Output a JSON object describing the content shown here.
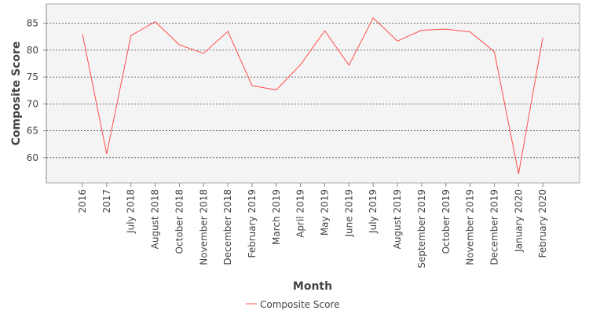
{
  "chart_data": {
    "type": "line",
    "xlabel": "Month",
    "ylabel": "Composite Score",
    "categories": [
      "2016",
      "2017",
      "July 2018",
      "August 2018",
      "October 2018",
      "November 2018",
      "December 2018",
      "February 2019",
      "March 2019",
      "April 2019",
      "May 2019",
      "June 2019",
      "July 2019",
      "August 2019",
      "September 2019",
      "October 2019",
      "November 2019",
      "December 2019",
      "January 2020",
      "February 2020"
    ],
    "series": [
      {
        "name": "Composite Score",
        "color": "#ff4d4d",
        "values": [
          83.0,
          60.7,
          82.7,
          85.3,
          81.0,
          79.4,
          83.5,
          73.4,
          72.6,
          77.3,
          83.6,
          77.2,
          86.0,
          81.7,
          83.7,
          83.9,
          83.4,
          79.7,
          57.0,
          82.3
        ]
      }
    ],
    "yticks": [
      60,
      65,
      70,
      75,
      80,
      85
    ],
    "ylim": [
      55.3,
      88.6
    ],
    "grid": true,
    "legend_position": "bottom"
  }
}
